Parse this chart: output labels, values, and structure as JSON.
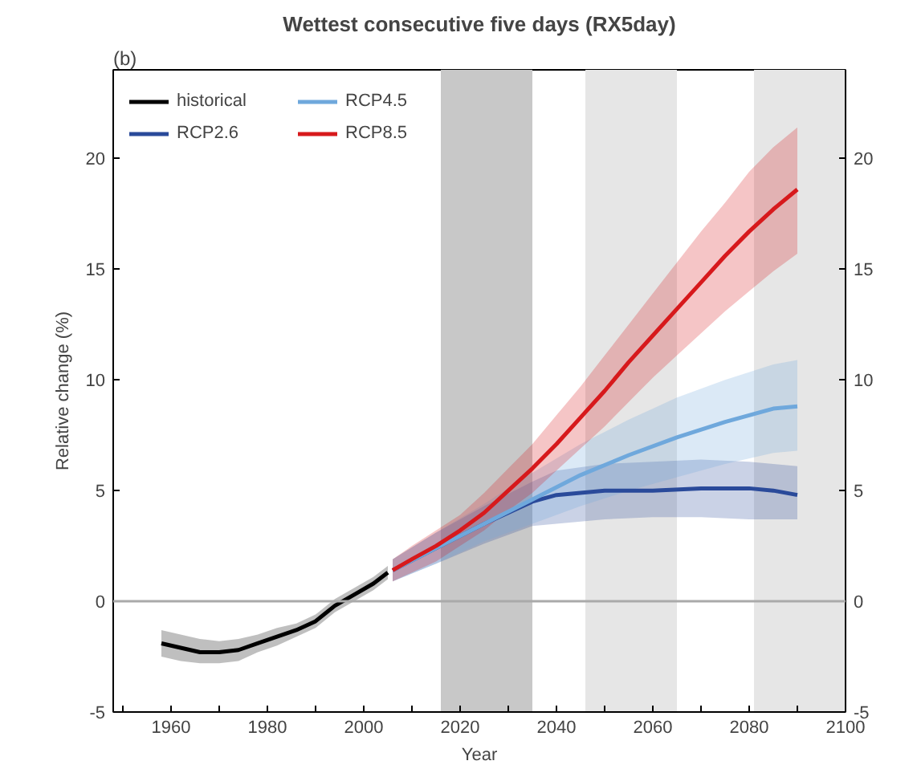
{
  "chart_data": {
    "type": "line",
    "title": "Wettest consecutive five days (RX5day)",
    "xlabel": "Year",
    "ylabel": "Relative change (%)",
    "annotations": [
      "(b)"
    ],
    "xlim": [
      1948,
      2100
    ],
    "ylim": [
      -5,
      24
    ],
    "y2lim": [
      -5,
      24
    ],
    "xticks": [
      {
        "value": 1950,
        "label": null
      },
      1960,
      {
        "value": 1970,
        "label": null
      },
      1980,
      {
        "value": 1990,
        "label": null
      },
      2000,
      {
        "value": 2010,
        "label": null
      },
      2020,
      {
        "value": 2030,
        "label": null
      },
      2040,
      {
        "value": 2050,
        "label": null
      },
      2060,
      {
        "value": 2070,
        "label": null
      },
      2080,
      {
        "value": 2090,
        "label": null
      },
      2100
    ],
    "yticks": [
      -5,
      0,
      5,
      10,
      15,
      20
    ],
    "y2ticks": [
      -5,
      0,
      5,
      10,
      15,
      20
    ],
    "grid": false,
    "legend": "top left",
    "line_style": "solid",
    "marker": "none",
    "ref_lines": [
      {
        "axis": "y",
        "value": 0,
        "color": "#aaaaaa"
      }
    ],
    "bands": [
      {
        "axis": "x",
        "from": 2016,
        "to": 2035,
        "color": "#c8c8c8"
      },
      {
        "axis": "x",
        "from": 2046,
        "to": 2065,
        "color": "#e6e6e6"
      },
      {
        "axis": "x",
        "from": 2081,
        "to": 2100,
        "color": "#e6e6e6"
      }
    ],
    "series": [
      {
        "name": "historical",
        "color": "#000000",
        "x": [
          1958,
          1962,
          1966,
          1970,
          1974,
          1978,
          1982,
          1986,
          1990,
          1994,
          1998,
          2002,
          2005
        ],
        "values": [
          -1.9,
          -2.1,
          -2.3,
          -2.3,
          -2.2,
          -1.9,
          -1.6,
          -1.3,
          -0.9,
          -0.2,
          0.3,
          0.8,
          1.3
        ],
        "lower": [
          -2.5,
          -2.7,
          -2.8,
          -2.8,
          -2.7,
          -2.3,
          -2.0,
          -1.6,
          -1.2,
          -0.5,
          0.0,
          0.5,
          1.0
        ],
        "upper": [
          -1.3,
          -1.5,
          -1.7,
          -1.8,
          -1.7,
          -1.5,
          -1.2,
          -1.0,
          -0.6,
          0.1,
          0.6,
          1.1,
          1.6
        ]
      },
      {
        "name": "RCP2.6",
        "color": "#2a4a9a",
        "x": [
          2006,
          2015,
          2025,
          2035,
          2040,
          2050,
          2060,
          2070,
          2080,
          2085,
          2090
        ],
        "values": [
          1.4,
          2.4,
          3.5,
          4.5,
          4.8,
          5.0,
          5.0,
          5.1,
          5.1,
          5.0,
          4.8
        ],
        "lower": [
          0.9,
          1.7,
          2.6,
          3.4,
          3.5,
          3.7,
          3.8,
          3.8,
          3.7,
          3.7,
          3.7
        ],
        "upper": [
          1.9,
          3.1,
          4.3,
          5.4,
          5.9,
          6.2,
          6.3,
          6.4,
          6.3,
          6.2,
          6.1
        ]
      },
      {
        "name": "RCP4.5",
        "color": "#6fa8dc",
        "x": [
          2006,
          2015,
          2025,
          2035,
          2045,
          2055,
          2065,
          2075,
          2085,
          2090
        ],
        "values": [
          1.4,
          2.4,
          3.5,
          4.6,
          5.7,
          6.6,
          7.4,
          8.1,
          8.7,
          8.8
        ],
        "lower": [
          0.9,
          1.7,
          2.7,
          3.5,
          4.3,
          5.0,
          5.6,
          6.2,
          6.7,
          6.8
        ],
        "upper": [
          1.9,
          3.1,
          4.4,
          5.8,
          7.1,
          8.2,
          9.2,
          10.0,
          10.7,
          10.9
        ]
      },
      {
        "name": "RCP8.5",
        "color": "#d7191c",
        "x": [
          2006,
          2010,
          2015,
          2020,
          2025,
          2030,
          2035,
          2040,
          2045,
          2050,
          2055,
          2060,
          2065,
          2070,
          2075,
          2080,
          2085,
          2090
        ],
        "values": [
          1.4,
          1.9,
          2.5,
          3.2,
          4.0,
          5.0,
          6.0,
          7.1,
          8.3,
          9.5,
          10.8,
          12.0,
          13.2,
          14.4,
          15.6,
          16.7,
          17.7,
          18.6
        ],
        "lower": [
          0.9,
          1.3,
          1.8,
          2.5,
          3.2,
          4.1,
          4.9,
          5.9,
          6.9,
          7.9,
          9.0,
          10.1,
          11.1,
          12.1,
          13.1,
          14.0,
          14.9,
          15.7
        ],
        "upper": [
          1.9,
          2.5,
          3.2,
          3.9,
          4.9,
          6.0,
          7.1,
          8.4,
          9.7,
          11.1,
          12.5,
          13.9,
          15.3,
          16.7,
          18.0,
          19.4,
          20.5,
          21.4
        ]
      }
    ]
  }
}
